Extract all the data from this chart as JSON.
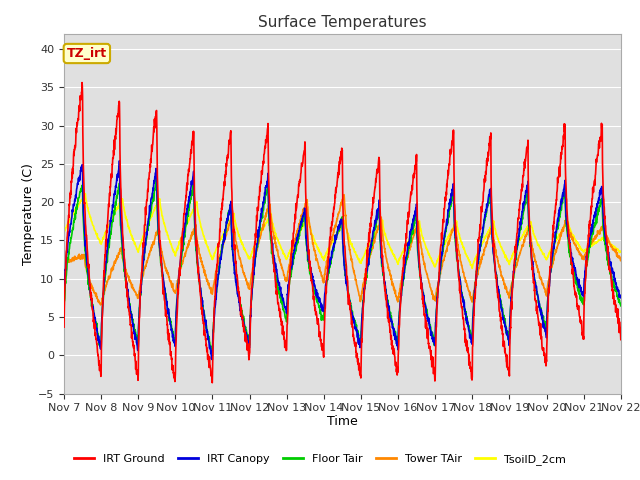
{
  "title": "Surface Temperatures",
  "xlabel": "Time",
  "ylabel": "Temperature (C)",
  "ylim": [
    -5,
    42
  ],
  "yticks": [
    -5,
    0,
    5,
    10,
    15,
    20,
    25,
    30,
    35,
    40
  ],
  "annotation_text": "TZ_irt",
  "series_colors": {
    "IRT Ground": "#ff0000",
    "IRT Canopy": "#0000dd",
    "Floor Tair": "#00cc00",
    "Tower TAir": "#ff8800",
    "TsoilD_2cm": "#ffff00"
  },
  "bg_color": "#ffffff",
  "plot_bg_top": "#d8d8d8",
  "plot_bg_bottom": "#e8e8e8",
  "grid_color": "#ffffff",
  "lw": 1.2,
  "xtick_labels": [
    "Nov 7",
    "Nov 8",
    "Nov 9",
    "Nov 10",
    "Nov 11",
    "Nov 12",
    "Nov 13",
    "Nov 14",
    "Nov 15",
    "Nov 16",
    "Nov 17",
    "Nov 18",
    "Nov 19",
    "Nov 20",
    "Nov 21",
    "Nov 22"
  ],
  "figsize": [
    6.4,
    4.8
  ],
  "dpi": 100
}
